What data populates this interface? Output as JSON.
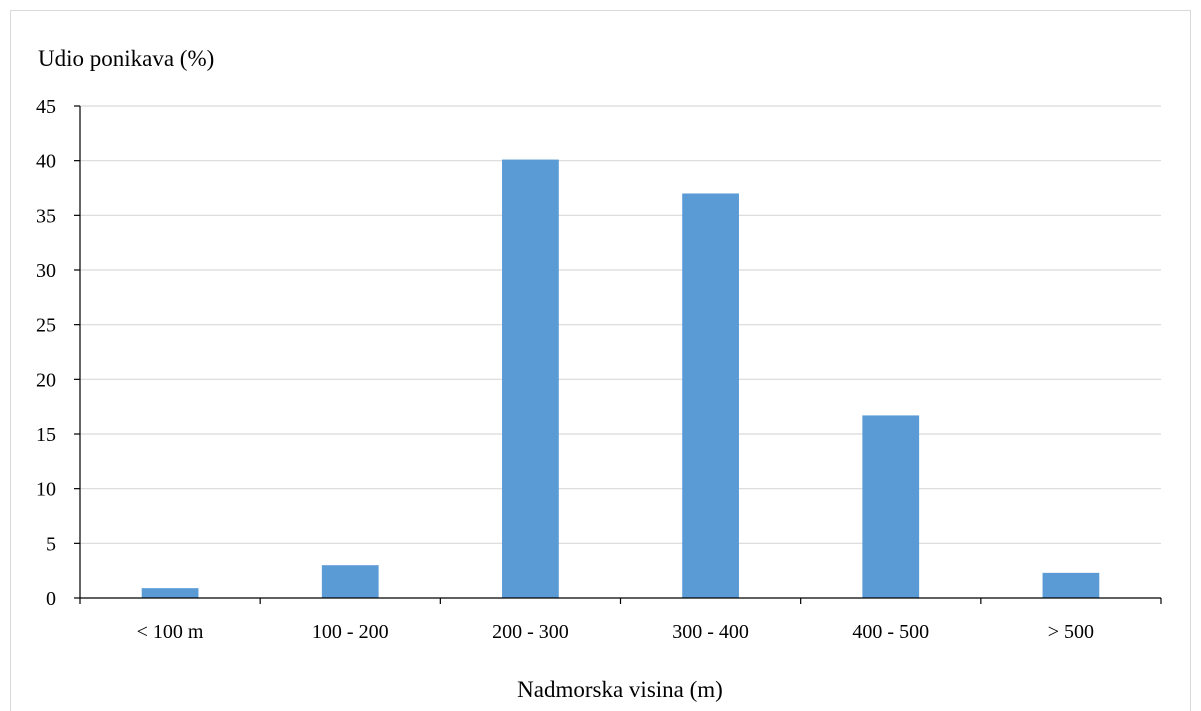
{
  "chart_data": {
    "type": "bar",
    "ylabel": "Udio ponikava (%)",
    "xlabel": "Nadmorska visina (m)",
    "categories": [
      "< 100 m",
      "100 - 200",
      "200 - 300",
      "300 - 400",
      "400 - 500",
      "> 500"
    ],
    "values": [
      0.9,
      3.0,
      40.1,
      37.0,
      16.7,
      2.3
    ],
    "ylim": [
      0,
      45
    ],
    "yticks": [
      0,
      5,
      10,
      15,
      20,
      25,
      30,
      35,
      40,
      45
    ],
    "grid": true,
    "legend": "none",
    "bar_color": "#5b9bd5",
    "grid_color": "#d9d9d9",
    "axis_color": "#000000"
  }
}
